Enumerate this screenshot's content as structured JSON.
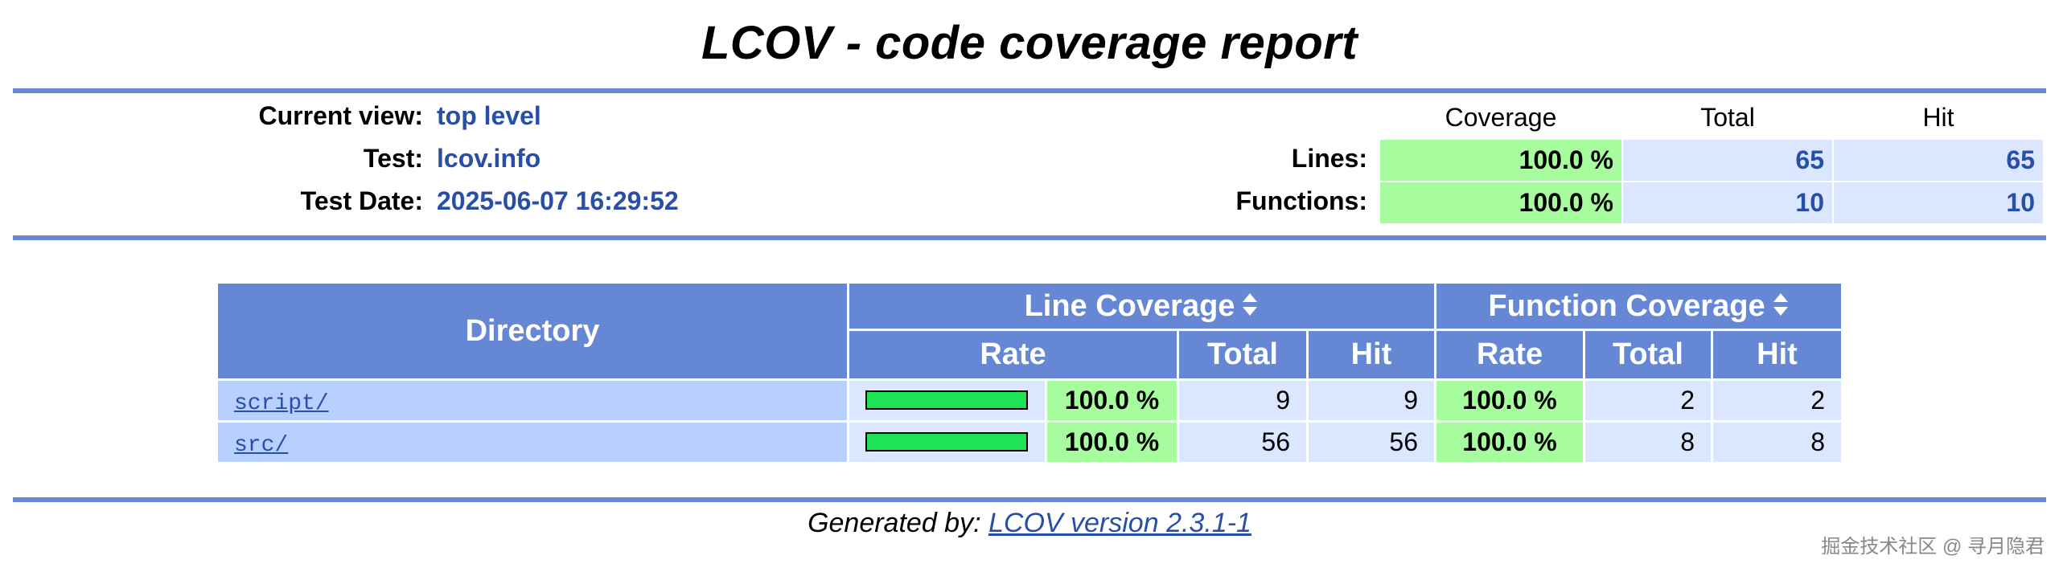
{
  "title": "LCOV - code coverage report",
  "header": {
    "current_view_label": "Current view:",
    "current_view_value": "top level",
    "test_label": "Test:",
    "test_value": "lcov.info",
    "test_date_label": "Test Date:",
    "test_date_value": "2025-06-07 16:29:52"
  },
  "summary": {
    "col_coverage": "Coverage",
    "col_total": "Total",
    "col_hit": "Hit",
    "rows": [
      {
        "label": "Lines:",
        "coverage": "100.0 %",
        "total": "65",
        "hit": "65"
      },
      {
        "label": "Functions:",
        "coverage": "100.0 %",
        "total": "10",
        "hit": "10"
      }
    ]
  },
  "table": {
    "directory_header": "Directory",
    "line_coverage_header": "Line Coverage",
    "function_coverage_header": "Function Coverage",
    "rate_header": "Rate",
    "total_header": "Total",
    "hit_header": "Hit",
    "rows": [
      {
        "name": "script/",
        "line_fill": 1.0,
        "line_rate": "100.0 %",
        "line_total": "9",
        "line_hit": "9",
        "fn_rate": "100.0 %",
        "fn_total": "2",
        "fn_hit": "2"
      },
      {
        "name": "src/",
        "line_fill": 1.0,
        "line_rate": "100.0 %",
        "line_total": "56",
        "line_hit": "56",
        "fn_rate": "100.0 %",
        "fn_total": "8",
        "fn_hit": "8"
      }
    ]
  },
  "footer": {
    "prefix": "Generated by: ",
    "link": "LCOV version 2.3.1-1"
  },
  "watermark": "掘金技术社区 @ 寻月隐君",
  "colors": {
    "header_blue": "#6688d4",
    "pct_green": "#a7fc9d",
    "bar_green": "#1ee356",
    "cell_light": "#dae7fe",
    "file_cell": "#b8d0ff",
    "link_blue": "#284fa8"
  },
  "icons": {
    "sort": "sort-updown-icon"
  }
}
